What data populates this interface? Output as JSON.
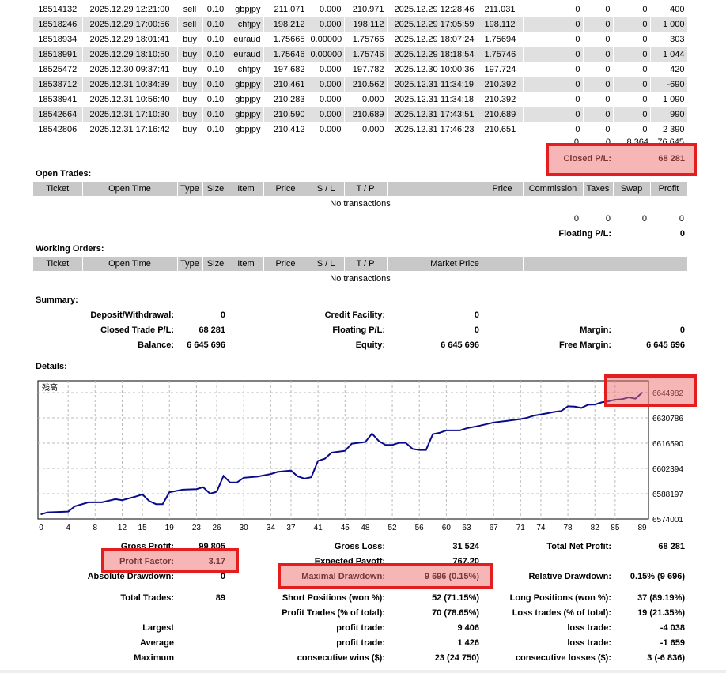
{
  "closed_trades": {
    "rows": [
      [
        "18514132",
        "2025.12.29 12:21:00",
        "sell",
        "0.10",
        "gbpjpy",
        "211.071",
        "0.000",
        "210.971",
        "2025.12.29 12:28:46",
        "211.031",
        "0",
        "0",
        "0",
        "400"
      ],
      [
        "18518246",
        "2025.12.29 17:00:56",
        "sell",
        "0.10",
        "chfjpy",
        "198.212",
        "0.000",
        "198.112",
        "2025.12.29 17:05:59",
        "198.112",
        "0",
        "0",
        "0",
        "1 000"
      ],
      [
        "18518934",
        "2025.12.29 18:01:41",
        "buy",
        "0.10",
        "euraud",
        "1.75665",
        "0.00000",
        "1.75766",
        "2025.12.29 18:07:24",
        "1.75694",
        "0",
        "0",
        "0",
        "303"
      ],
      [
        "18518991",
        "2025.12.29 18:10:50",
        "buy",
        "0.10",
        "euraud",
        "1.75646",
        "0.00000",
        "1.75746",
        "2025.12.29 18:18:54",
        "1.75746",
        "0",
        "0",
        "0",
        "1 044"
      ],
      [
        "18525472",
        "2025.12.30 09:37:41",
        "buy",
        "0.10",
        "chfjpy",
        "197.682",
        "0.000",
        "197.782",
        "2025.12.30 10:00:36",
        "197.724",
        "0",
        "0",
        "0",
        "420"
      ],
      [
        "18538712",
        "2025.12.31 10:34:39",
        "buy",
        "0.10",
        "gbpjpy",
        "210.461",
        "0.000",
        "210.562",
        "2025.12.31 11:34:19",
        "210.392",
        "0",
        "0",
        "0",
        "-690"
      ],
      [
        "18538941",
        "2025.12.31 10:56:40",
        "buy",
        "0.10",
        "gbpjpy",
        "210.283",
        "0.000",
        "0.000",
        "2025.12.31 11:34:18",
        "210.392",
        "0",
        "0",
        "0",
        "1 090"
      ],
      [
        "18542664",
        "2025.12.31 17:10:30",
        "buy",
        "0.10",
        "gbpjpy",
        "210.590",
        "0.000",
        "210.689",
        "2025.12.31 17:43:51",
        "210.689",
        "0",
        "0",
        "0",
        "990"
      ],
      [
        "18542806",
        "2025.12.31 17:16:42",
        "buy",
        "0.10",
        "gbpjpy",
        "210.412",
        "0.000",
        "0.000",
        "2025.12.31 17:46:23",
        "210.651",
        "0",
        "0",
        "0",
        "2 390"
      ]
    ],
    "totals": [
      "0",
      "0",
      "8 364",
      "76 645"
    ],
    "closed_pl_label": "Closed P/L:",
    "closed_pl_value": "68 281"
  },
  "open_trades": {
    "title": "Open Trades:",
    "headers": [
      "Ticket",
      "Open Time",
      "Type",
      "Size",
      "Item",
      "Price",
      "S / L",
      "T / P",
      "",
      "Price",
      "Commission",
      "Taxes",
      "Swap",
      "Profit"
    ],
    "empty": "No transactions",
    "totals": [
      "0",
      "0",
      "0",
      "0"
    ],
    "floating_label": "Floating P/L:",
    "floating_value": "0"
  },
  "working_orders": {
    "title": "Working Orders:",
    "headers": [
      "Ticket",
      "Open Time",
      "Type",
      "Size",
      "Item",
      "Price",
      "S / L",
      "T / P",
      "Market Price",
      ""
    ],
    "empty": "No transactions"
  },
  "summary": {
    "title": "Summary:",
    "deposit_label": "Deposit/Withdrawal:",
    "deposit": "0",
    "credit_label": "Credit Facility:",
    "credit": "0",
    "closed_label": "Closed Trade P/L:",
    "closed": "68 281",
    "floating_label": "Floating P/L:",
    "floating": "0",
    "margin_label": "Margin:",
    "margin": "0",
    "balance_label": "Balance:",
    "balance": "6 645 696",
    "equity_label": "Equity:",
    "equity": "6 645 696",
    "free_margin_label": "Free Margin:",
    "free_margin": "6 645 696"
  },
  "details": {
    "title": "Details:",
    "stats": [
      [
        [
          "Gross Profit:",
          "99 805"
        ],
        [
          "Gross Loss:",
          "31 524"
        ],
        [
          "Total Net Profit:",
          "68 281"
        ]
      ],
      [
        [
          "Profit Factor:",
          "3.17"
        ],
        [
          "Expected Payoff:",
          "767.20"
        ],
        [
          "",
          ""
        ]
      ],
      [
        [
          "Absolute Drawdown:",
          "0"
        ],
        [
          "Maximal Drawdown:",
          "9 696 (0.15%)"
        ],
        [
          "Relative Drawdown:",
          "0.15% (9 696)"
        ]
      ],
      [
        [
          "Total Trades:",
          "89"
        ],
        [
          "Short Positions (won %):",
          "52 (71.15%)"
        ],
        [
          "Long Positions (won %):",
          "37 (89.19%)"
        ]
      ],
      [
        [
          "",
          ""
        ],
        [
          "Profit Trades (% of total):",
          "70 (78.65%)"
        ],
        [
          "Loss trades (% of total):",
          "19 (21.35%)"
        ]
      ],
      [
        [
          "Largest",
          ""
        ],
        [
          "profit trade:",
          "9 406"
        ],
        [
          "loss trade:",
          "-4 038"
        ]
      ],
      [
        [
          "Average",
          ""
        ],
        [
          "profit trade:",
          "1 426"
        ],
        [
          "loss trade:",
          "-1 659"
        ]
      ],
      [
        [
          "Maximum",
          ""
        ],
        [
          "consecutive wins ($):",
          "23 (24 750)"
        ],
        [
          "consecutive losses ($):",
          "3 (-6 836)"
        ]
      ]
    ]
  },
  "chart_data": {
    "type": "line",
    "title": "残高",
    "xlabel": "",
    "ylabel": "",
    "x_ticks": [
      0,
      4,
      8,
      12,
      15,
      19,
      23,
      26,
      30,
      34,
      37,
      41,
      45,
      48,
      52,
      56,
      60,
      63,
      67,
      71,
      74,
      78,
      82,
      85,
      89
    ],
    "y_ticks": [
      "6644982",
      "6630786",
      "6616590",
      "6602394",
      "6588197",
      "6574001"
    ],
    "xlim": [
      0,
      89
    ],
    "ylim": [
      6574001,
      6651636
    ],
    "grid": true,
    "color": "#0a0a8c",
    "x": [
      0,
      1,
      4,
      5,
      7,
      9,
      11,
      12,
      14,
      15,
      16,
      17,
      18,
      19,
      21,
      23,
      24,
      25,
      26,
      27,
      28,
      29,
      30,
      32,
      34,
      35,
      37,
      38,
      39,
      40,
      41,
      42,
      43,
      45,
      46,
      48,
      49,
      50,
      51,
      52,
      53,
      54,
      55,
      56,
      57,
      58,
      59,
      60,
      62,
      63,
      65,
      67,
      69,
      71,
      72,
      73,
      75,
      76,
      77,
      78,
      79,
      80,
      81,
      82,
      83,
      84,
      85,
      86,
      87,
      88,
      89
    ],
    "y": [
      6576674,
      6577713,
      6578160,
      6581130,
      6583360,
      6583360,
      6585140,
      6584550,
      6586620,
      6587810,
      6584100,
      6582320,
      6582320,
      6589000,
      6590480,
      6590780,
      6591820,
      6588260,
      6589300,
      6598200,
      6594500,
      6594500,
      6597170,
      6597760,
      6599250,
      6600440,
      6601180,
      6597910,
      6596720,
      6597460,
      6606670,
      6607860,
      6611280,
      6612300,
      6616320,
      6617200,
      6621960,
      6617800,
      6615580,
      6615580,
      6616780,
      6616780,
      6613360,
      6612770,
      6612770,
      6621660,
      6622400,
      6623750,
      6623750,
      6624930,
      6626420,
      6628200,
      6629090,
      6630130,
      6630870,
      6632060,
      6633400,
      6634140,
      6634590,
      6637260,
      6637100,
      6636370,
      6638150,
      6638300,
      6639490,
      6640080,
      6640970,
      6641270,
      6642310,
      6641570,
      6644982
    ]
  }
}
